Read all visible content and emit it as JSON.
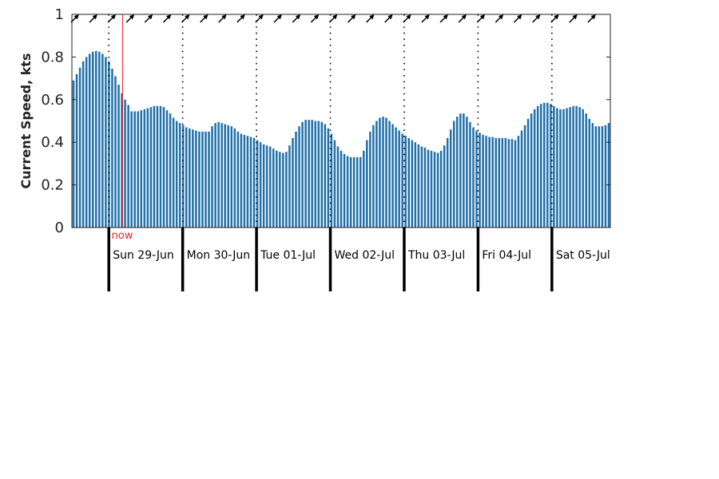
{
  "chart_data": {
    "type": "bar",
    "title": "",
    "ylabel": "Current Speed, kts",
    "xlabel": "",
    "ylim": [
      0,
      1
    ],
    "yticks": [
      "0",
      "0.2",
      "0.4",
      "0.6",
      "0.8",
      "1"
    ],
    "grid": false,
    "bar_color": "#1f6fa8",
    "now_marker": {
      "label": "now",
      "hour": 4.5,
      "color": "#e8252a"
    },
    "day_labels": [
      "Sun 29-Jun",
      "Mon 30-Jun",
      "Tue 01-Jul",
      "Wed 02-Jul",
      "Thu 03-Jul",
      "Fri 04-Jul",
      "Sat 05-Jul"
    ],
    "direction_arrows": "north-east",
    "hours_start": -12,
    "hours_end": 163,
    "values": [
      0.69,
      0.72,
      0.75,
      0.78,
      0.8,
      0.815,
      0.825,
      0.828,
      0.825,
      0.815,
      0.8,
      0.78,
      0.745,
      0.71,
      0.67,
      0.63,
      0.6,
      0.575,
      0.545,
      0.545,
      0.545,
      0.55,
      0.555,
      0.56,
      0.565,
      0.57,
      0.57,
      0.57,
      0.565,
      0.55,
      0.535,
      0.515,
      0.5,
      0.49,
      0.48,
      0.47,
      0.465,
      0.46,
      0.455,
      0.45,
      0.45,
      0.45,
      0.45,
      0.475,
      0.49,
      0.495,
      0.49,
      0.485,
      0.48,
      0.475,
      0.465,
      0.45,
      0.44,
      0.435,
      0.43,
      0.425,
      0.42,
      0.41,
      0.4,
      0.39,
      0.385,
      0.38,
      0.37,
      0.36,
      0.355,
      0.35,
      0.355,
      0.385,
      0.42,
      0.45,
      0.475,
      0.495,
      0.505,
      0.505,
      0.505,
      0.5,
      0.5,
      0.495,
      0.485,
      0.465,
      0.44,
      0.41,
      0.38,
      0.36,
      0.345,
      0.335,
      0.33,
      0.33,
      0.33,
      0.33,
      0.36,
      0.41,
      0.45,
      0.48,
      0.5,
      0.515,
      0.52,
      0.515,
      0.5,
      0.485,
      0.47,
      0.455,
      0.44,
      0.43,
      0.42,
      0.41,
      0.4,
      0.39,
      0.38,
      0.375,
      0.365,
      0.36,
      0.355,
      0.35,
      0.36,
      0.385,
      0.42,
      0.46,
      0.5,
      0.52,
      0.535,
      0.535,
      0.52,
      0.495,
      0.47,
      0.455,
      0.445,
      0.435,
      0.43,
      0.425,
      0.425,
      0.42,
      0.42,
      0.42,
      0.42,
      0.415,
      0.415,
      0.41,
      0.43,
      0.455,
      0.48,
      0.51,
      0.535,
      0.555,
      0.57,
      0.58,
      0.585,
      0.585,
      0.58,
      0.57,
      0.56,
      0.555,
      0.555,
      0.56,
      0.565,
      0.57,
      0.57,
      0.565,
      0.555,
      0.535,
      0.51,
      0.49,
      0.475,
      0.475,
      0.475,
      0.48,
      0.49
    ]
  }
}
